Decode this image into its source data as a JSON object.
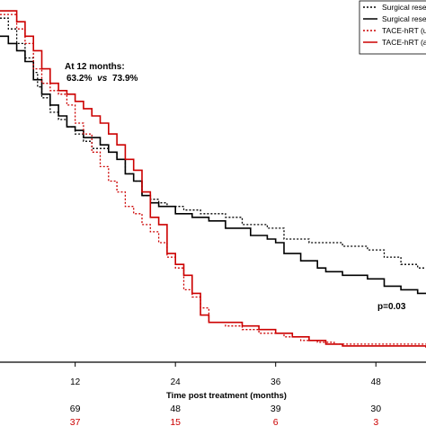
{
  "chart_data": {
    "type": "line",
    "subtype": "kaplan-meier",
    "xlabel": "Time post treatment (months)",
    "x_ticks": [
      12,
      24,
      36,
      48
    ],
    "xlim": [
      3,
      54
    ],
    "ylim": [
      0,
      1
    ],
    "grid": false,
    "legend_placement": "top-right",
    "legend": [
      {
        "label": "Surgical rese",
        "color": "#000000",
        "dash": "dotted"
      },
      {
        "label": "Surgical rese",
        "color": "#000000",
        "dash": "solid"
      },
      {
        "label": "TACE-hRT (un",
        "color": "#cc0000",
        "dash": "dotted"
      },
      {
        "label": "TACE-hRT (ad",
        "color": "#cc0000",
        "dash": "solid"
      }
    ],
    "series": [
      {
        "color": "#000000",
        "dash": "dotted",
        "points": [
          [
            3,
            0.95
          ],
          [
            4,
            0.92
          ],
          [
            5,
            0.88
          ],
          [
            6,
            0.84
          ],
          [
            7,
            0.8
          ],
          [
            7.5,
            0.76
          ],
          [
            8,
            0.73
          ],
          [
            9,
            0.69
          ],
          [
            10,
            0.67
          ],
          [
            11,
            0.65
          ],
          [
            12,
            0.63
          ],
          [
            13,
            0.61
          ],
          [
            14,
            0.59
          ],
          [
            16,
            0.58
          ],
          [
            17,
            0.56
          ],
          [
            18,
            0.52
          ],
          [
            19,
            0.5
          ],
          [
            20,
            0.46
          ],
          [
            21,
            0.45
          ],
          [
            22,
            0.44
          ],
          [
            23,
            0.43
          ],
          [
            25,
            0.42
          ],
          [
            27,
            0.41
          ],
          [
            30,
            0.4
          ],
          [
            32,
            0.38
          ],
          [
            35,
            0.37
          ],
          [
            37,
            0.34
          ],
          [
            40,
            0.33
          ],
          [
            42,
            0.33
          ],
          [
            44,
            0.32
          ],
          [
            47,
            0.31
          ],
          [
            49,
            0.29
          ],
          [
            51,
            0.27
          ],
          [
            53,
            0.26
          ],
          [
            54,
            0.26
          ]
        ]
      },
      {
        "color": "#000000",
        "dash": "solid",
        "points": [
          [
            3,
            0.9
          ],
          [
            4,
            0.88
          ],
          [
            5,
            0.86
          ],
          [
            6,
            0.83
          ],
          [
            7,
            0.78
          ],
          [
            8,
            0.74
          ],
          [
            9,
            0.71
          ],
          [
            10,
            0.68
          ],
          [
            11,
            0.65
          ],
          [
            12,
            0.64
          ],
          [
            13,
            0.62
          ],
          [
            15,
            0.6
          ],
          [
            16,
            0.58
          ],
          [
            17,
            0.56
          ],
          [
            18,
            0.52
          ],
          [
            19,
            0.5
          ],
          [
            20,
            0.46
          ],
          [
            21,
            0.44
          ],
          [
            22,
            0.43
          ],
          [
            24,
            0.41
          ],
          [
            26,
            0.4
          ],
          [
            28,
            0.39
          ],
          [
            30,
            0.37
          ],
          [
            33,
            0.35
          ],
          [
            35,
            0.34
          ],
          [
            36,
            0.33
          ],
          [
            37,
            0.3
          ],
          [
            39,
            0.28
          ],
          [
            41,
            0.26
          ],
          [
            42,
            0.25
          ],
          [
            44,
            0.24
          ],
          [
            47,
            0.23
          ],
          [
            49,
            0.21
          ],
          [
            51,
            0.2
          ],
          [
            53,
            0.19
          ],
          [
            54,
            0.19
          ]
        ]
      },
      {
        "color": "#cc0000",
        "dash": "dotted",
        "points": [
          [
            3,
            0.96
          ],
          [
            5,
            0.92
          ],
          [
            6,
            0.88
          ],
          [
            7,
            0.81
          ],
          [
            8,
            0.77
          ],
          [
            9,
            0.75
          ],
          [
            10,
            0.74
          ],
          [
            11,
            0.71
          ],
          [
            12,
            0.66
          ],
          [
            13,
            0.63
          ],
          [
            14,
            0.58
          ],
          [
            15,
            0.54
          ],
          [
            16,
            0.5
          ],
          [
            17,
            0.47
          ],
          [
            18,
            0.43
          ],
          [
            19,
            0.41
          ],
          [
            20,
            0.38
          ],
          [
            21,
            0.36
          ],
          [
            22,
            0.33
          ],
          [
            23,
            0.29
          ],
          [
            24,
            0.26
          ],
          [
            25,
            0.2
          ],
          [
            26,
            0.18
          ],
          [
            27,
            0.15
          ],
          [
            28,
            0.11
          ],
          [
            30,
            0.1
          ],
          [
            32,
            0.09
          ],
          [
            34,
            0.08
          ],
          [
            37,
            0.07
          ],
          [
            39,
            0.06
          ],
          [
            41,
            0.055
          ],
          [
            43,
            0.05
          ],
          [
            54,
            0.05
          ]
        ]
      },
      {
        "color": "#cc0000",
        "dash": "solid",
        "points": [
          [
            3,
            0.97
          ],
          [
            5,
            0.94
          ],
          [
            6,
            0.9
          ],
          [
            7,
            0.86
          ],
          [
            8,
            0.81
          ],
          [
            9,
            0.77
          ],
          [
            10,
            0.75
          ],
          [
            11,
            0.74
          ],
          [
            12,
            0.72
          ],
          [
            13,
            0.7
          ],
          [
            14,
            0.68
          ],
          [
            15,
            0.66
          ],
          [
            16,
            0.63
          ],
          [
            17,
            0.6
          ],
          [
            18,
            0.56
          ],
          [
            19,
            0.53
          ],
          [
            20,
            0.47
          ],
          [
            21,
            0.4
          ],
          [
            22,
            0.38
          ],
          [
            23,
            0.3
          ],
          [
            24,
            0.27
          ],
          [
            25,
            0.24
          ],
          [
            26,
            0.19
          ],
          [
            27,
            0.13
          ],
          [
            28,
            0.11
          ],
          [
            30,
            0.11
          ],
          [
            32,
            0.1
          ],
          [
            34,
            0.09
          ],
          [
            36,
            0.08
          ],
          [
            38,
            0.07
          ],
          [
            40,
            0.06
          ],
          [
            42,
            0.05
          ],
          [
            44,
            0.045
          ],
          [
            54,
            0.04
          ]
        ]
      }
    ],
    "annotations": {
      "months_label": "At 12 months:",
      "rate_a": "63.2%",
      "vs_word": "vs",
      "rate_b": "73.9%",
      "p_value": "p=0.03"
    },
    "risk_table": {
      "rows": [
        {
          "color": "#000000",
          "values": [
            "69",
            "48",
            "39",
            "30"
          ]
        },
        {
          "color": "#cc0000",
          "values": [
            "37",
            "15",
            "6",
            "3"
          ]
        }
      ]
    }
  }
}
